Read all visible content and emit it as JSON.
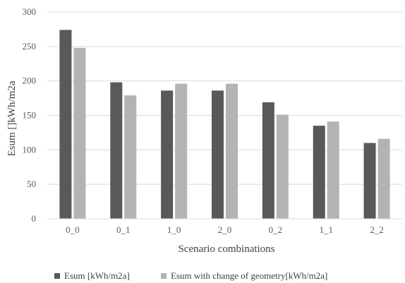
{
  "chart_data": {
    "type": "bar",
    "categories": [
      "0_0",
      "0_1",
      "1_0",
      "2_0",
      "0_2",
      "1_1",
      "2_2"
    ],
    "series": [
      {
        "name": "Esum [kWh/m2a]",
        "color": "#595959",
        "values": [
          274,
          198,
          186,
          186,
          169,
          135,
          110
        ]
      },
      {
        "name": "Esum with change of geometry[kWh/m2a]",
        "color": "#b3b3b3",
        "values": [
          248,
          179,
          196,
          196,
          151,
          141,
          116
        ]
      }
    ],
    "xlabel": "Scenario combinations",
    "ylabel": "Esum []kWh/m2a",
    "ylim": [
      0,
      300
    ],
    "yticks": [
      "0",
      "50",
      "100",
      "150",
      "200",
      "250",
      "300"
    ],
    "grid": true,
    "legend_position": "bottom"
  }
}
